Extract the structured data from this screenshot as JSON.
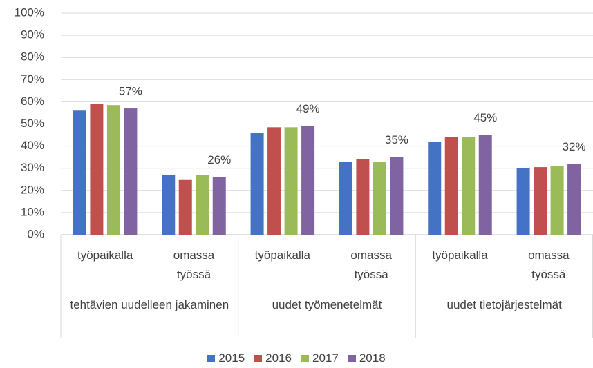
{
  "chart_data": {
    "type": "bar",
    "category_groups": [
      {
        "name": "tehtävien uudelleen jakaminen",
        "categories": [
          "työpaikalla",
          "omassa työssä"
        ]
      },
      {
        "name": "uudet työmenetelmät",
        "categories": [
          "työpaikalla",
          "omassa työssä"
        ]
      },
      {
        "name": "uudet tietojärjestelmät",
        "categories": [
          "työpaikalla",
          "omassa työssä"
        ]
      }
    ],
    "series": [
      {
        "name": "2015",
        "color": "#4472c4",
        "values": [
          56,
          27,
          46,
          33,
          42,
          30
        ]
      },
      {
        "name": "2016",
        "color": "#c0504d",
        "values": [
          59,
          25,
          48.5,
          34,
          44,
          30.5
        ]
      },
      {
        "name": "2017",
        "color": "#9bbb59",
        "values": [
          58.5,
          27,
          48.5,
          33,
          44,
          31
        ]
      },
      {
        "name": "2018",
        "color": "#8064a2",
        "values": [
          57,
          26,
          49,
          35,
          45,
          32
        ],
        "value_labels": [
          "57%",
          "26%",
          "49%",
          "35%",
          "45%",
          "32%"
        ]
      }
    ],
    "ylim": [
      0,
      100
    ],
    "yticks": [
      {
        "value": 0,
        "label": "0%"
      },
      {
        "value": 10,
        "label": "10%"
      },
      {
        "value": 20,
        "label": "20%"
      },
      {
        "value": 30,
        "label": "30%"
      },
      {
        "value": 40,
        "label": "40%"
      },
      {
        "value": 50,
        "label": "50%"
      },
      {
        "value": 60,
        "label": "60%"
      },
      {
        "value": 70,
        "label": "70%"
      },
      {
        "value": 80,
        "label": "80%"
      },
      {
        "value": 90,
        "label": "90%"
      },
      {
        "value": 100,
        "label": "100%"
      }
    ],
    "grid": true,
    "legend": "bottom"
  }
}
